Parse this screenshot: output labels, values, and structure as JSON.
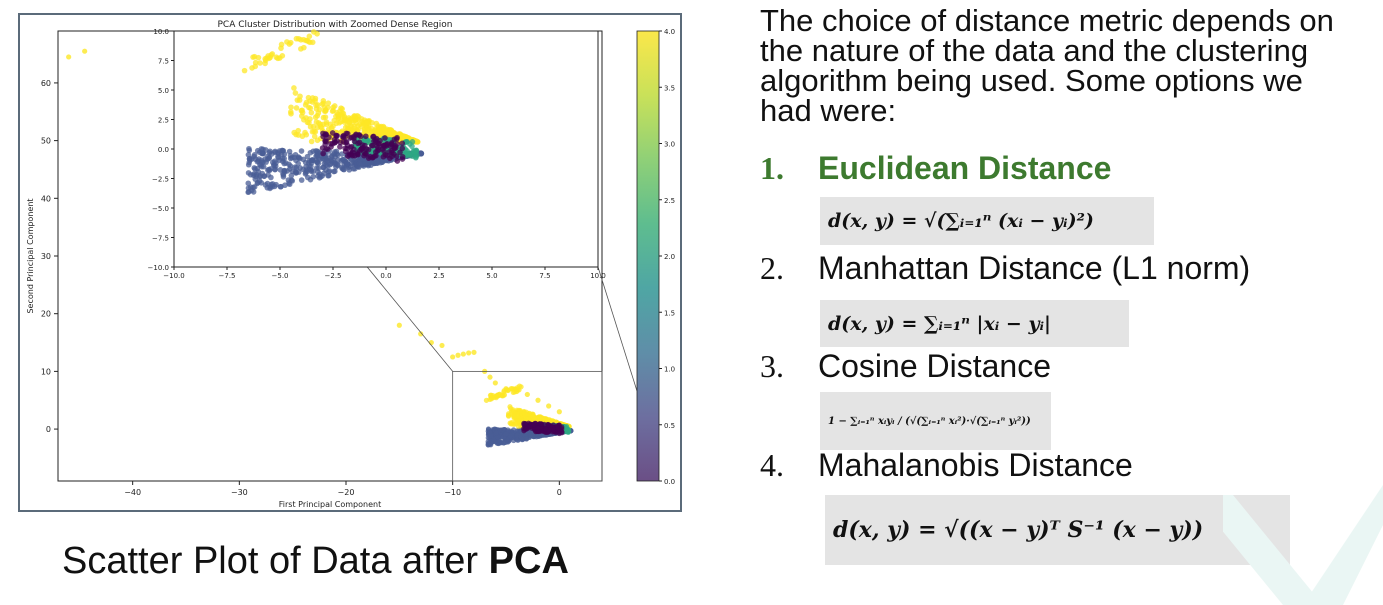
{
  "chart_data": {
    "type": "scatter",
    "title": "PCA Cluster Distribution with Zoomed Dense Region",
    "xlabel": "First Principal Component",
    "ylabel": "Second Principal Component",
    "xlim": [
      -47,
      4
    ],
    "ylim": [
      -9,
      69
    ],
    "xticks": [
      -40,
      -30,
      -20,
      -10,
      0
    ],
    "yticks": [
      0,
      10,
      20,
      30,
      40,
      50,
      60
    ],
    "grid": false,
    "colormap": "viridis",
    "colorbar": {
      "range": [
        0.0,
        4.0
      ],
      "ticks": [
        "0.0",
        "0.5",
        "1.0",
        "1.5",
        "2.0",
        "2.5",
        "3.0",
        "3.5",
        "4.0"
      ]
    },
    "series": [
      {
        "cluster": 4,
        "color": "#fde725",
        "description_points": [
          [
            -46,
            64.5
          ],
          [
            -44.5,
            65.5
          ],
          [
            -15,
            18
          ],
          [
            -13,
            16.5
          ],
          [
            -12,
            15
          ],
          [
            -11,
            14.5
          ],
          [
            -10,
            12.5
          ],
          [
            -9.5,
            12.8
          ],
          [
            -9,
            13
          ],
          [
            -8.5,
            13.2
          ],
          [
            -8,
            13.3
          ],
          [
            -7,
            10
          ],
          [
            -6.5,
            9
          ],
          [
            -6,
            8
          ],
          [
            -5,
            7
          ],
          [
            -4,
            6.5
          ],
          [
            -3,
            6
          ],
          [
            -2,
            5
          ],
          [
            -1,
            4
          ],
          [
            0,
            3
          ]
        ]
      },
      {
        "cluster": 1,
        "color": "#4a5e96"
      },
      {
        "cluster": 2,
        "color": "#2ea883"
      },
      {
        "cluster": 0,
        "color": "#440154"
      }
    ],
    "inset": {
      "xlim": [
        -10,
        10
      ],
      "ylim": [
        -10,
        10
      ],
      "xticks": [
        -10.0,
        -7.5,
        -5.0,
        -2.5,
        0.0,
        2.5,
        5.0,
        7.5,
        10.0
      ],
      "yticks": [
        -10.0,
        -7.5,
        -5.0,
        -2.5,
        0.0,
        2.5,
        5.0,
        7.5,
        10.0
      ],
      "xtick_labels": [
        "−10.0",
        "−7.5",
        "−5.0",
        "−2.5",
        "0.0",
        "2.5",
        "5.0",
        "7.5",
        "10.0"
      ],
      "ytick_labels": [
        "−10.0",
        "−7.5",
        "−5.0",
        "−2.5",
        "0.0",
        "2.5",
        "5.0",
        "7.5",
        "10.0"
      ],
      "zoom_region": {
        "x": [
          -10,
          2
        ],
        "y": [
          -8,
          10
        ]
      }
    }
  },
  "main_xtick_labels": [
    "−40",
    "−30",
    "−20",
    "−10",
    "0"
  ],
  "main_ytick_labels": [
    "0",
    "10",
    "20",
    "30",
    "40",
    "50",
    "60"
  ],
  "caption": {
    "prefix": "Scatter Plot of Data after ",
    "bold": "PCA"
  },
  "intro_text": "The choice of distance metric depends on the nature of the data and the clustering algorithm being used. Some options we had were:",
  "metrics": [
    {
      "number": "1.",
      "name": "Euclidean Distance",
      "highlight": true
    },
    {
      "number": "2.",
      "name": "Manhattan Distance (L1 norm)"
    },
    {
      "number": "3.",
      "name": "Cosine Distance"
    },
    {
      "number": "4.",
      "name": "Mahalanobis Distance"
    }
  ],
  "formulas": {
    "euclidean": "d(x, y) = √(∑ᵢ₌₁ⁿ (xᵢ − yᵢ)²)",
    "manhattan": "d(x, y) = ∑ᵢ₌₁ⁿ |xᵢ − yᵢ|",
    "cosine": "1 − ∑ᵢ₌₁ⁿ xᵢyᵢ / (√(∑ᵢ₌₁ⁿ xᵢ²)·√(∑ᵢ₌₁ⁿ yᵢ²))",
    "mahalanobis": "d(x, y) = √((x − y)ᵀ S⁻¹ (x − y))"
  },
  "colors": {
    "highlight": "#3d7a2f",
    "formula_bg": "#e4e4e4",
    "frame": "#5b6b7a"
  }
}
